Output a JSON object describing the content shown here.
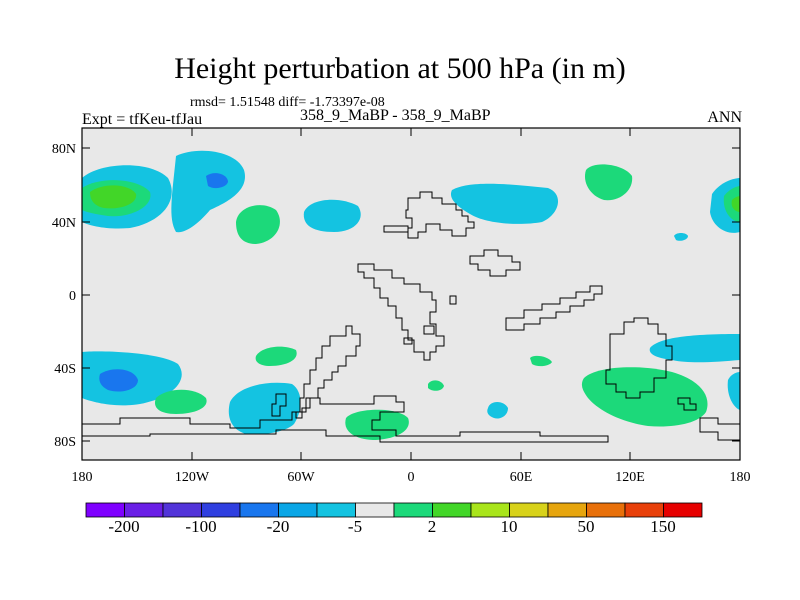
{
  "title": "Height perturbation at 500 hPa (in m)",
  "stats": "rmsd= 1.51548 diff= -1.73397e-08",
  "left_label": "Expt = tfKeu-tfJau",
  "center_label": "358_9_MaBP - 358_9_MaBP",
  "right_label": "ANN",
  "colors": {
    "background": "#e8e8e8",
    "levels": [
      "#7f00ff",
      "#6a1fe6",
      "#5234d9",
      "#2f3fe0",
      "#1976ee",
      "#0aa6e6",
      "#14c3e1",
      "#e8e8e8",
      "#1cd97a",
      "#42d628",
      "#a9e51b",
      "#d8d21a",
      "#e6a50e",
      "#e8700a",
      "#e8400a",
      "#e60000"
    ]
  },
  "map": {
    "lat_ticks": [
      "80N",
      "40N",
      "0",
      "40S",
      "80S"
    ],
    "lon_ticks": [
      "180",
      "120W",
      "60W",
      "0",
      "60E",
      "120E",
      "180"
    ]
  },
  "colorbar": {
    "labels": [
      "-200",
      "-100",
      "-20",
      "-5",
      "2",
      "10",
      "50",
      "150"
    ]
  }
}
